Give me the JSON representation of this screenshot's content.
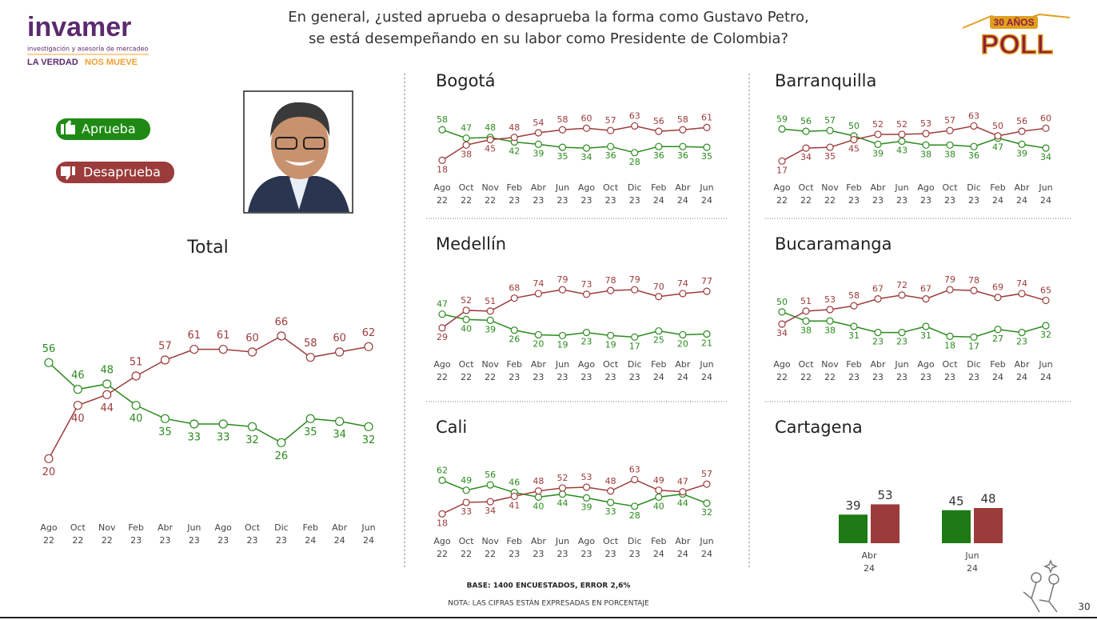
{
  "header": {
    "logo": "invamer",
    "logo_tagline": "investigación y asesoría de mercadeo",
    "slogan_1": "LA VERDAD",
    "slogan_2": "NOS MUEVE",
    "question_line_1": "En general, ¿usted aprueba o desaprueba la forma como Gustavo Petro,",
    "question_line_2": "se está desempeñando en su labor como Presidente de Colombia?",
    "badge_top": "30 AÑOS",
    "badge_bottom": "POLL"
  },
  "chart_data": [
    {
      "type": "line",
      "title": "Total",
      "categories": [
        "Ago 22",
        "Oct 22",
        "Nov 22",
        "Feb 23",
        "Abr 23",
        "Jun 23",
        "Ago 23",
        "Oct 23",
        "Dic 23",
        "Feb 24",
        "Abr 24",
        "Jun 24"
      ],
      "series": [
        {
          "name": "Aprueba",
          "color": "#2b8a1e",
          "values": [
            56,
            46,
            48,
            40,
            35,
            33,
            33,
            32,
            26,
            35,
            34,
            32
          ]
        },
        {
          "name": "Desaprueba",
          "color": "#9c3b3b",
          "values": [
            20,
            40,
            44,
            51,
            57,
            61,
            61,
            60,
            66,
            58,
            60,
            62
          ]
        }
      ],
      "ylim": [
        15,
        72
      ]
    },
    {
      "type": "line",
      "title": "Bogotá",
      "categories": [
        "Ago 22",
        "Oct 22",
        "Nov 22",
        "Feb 23",
        "Abr 23",
        "Jun 23",
        "Ago 23",
        "Oct 23",
        "Dic 23",
        "Feb 24",
        "Abr 24",
        "Jun 24"
      ],
      "series": [
        {
          "color": "#2b8a1e",
          "values": [
            58,
            47,
            48,
            42,
            39,
            35,
            34,
            36,
            28,
            36,
            36,
            35
          ]
        },
        {
          "color": "#9c3b3b",
          "values": [
            18,
            38,
            45,
            48,
            54,
            58,
            60,
            57,
            63,
            56,
            58,
            61
          ]
        }
      ],
      "ylim": [
        10,
        75
      ]
    },
    {
      "type": "line",
      "title": "Barranquilla",
      "categories": [
        "Ago 22",
        "Oct 22",
        "Nov 22",
        "Feb 23",
        "Abr 23",
        "Jun 23",
        "Ago 23",
        "Oct 23",
        "Dic 23",
        "Feb 24",
        "Abr 24",
        "Jun 24"
      ],
      "series": [
        {
          "color": "#2b8a1e",
          "values": [
            59,
            56,
            57,
            50,
            39,
            43,
            38,
            38,
            36,
            47,
            39,
            34
          ]
        },
        {
          "color": "#9c3b3b",
          "values": [
            17,
            34,
            35,
            45,
            52,
            52,
            53,
            57,
            63,
            50,
            56,
            60
          ]
        }
      ],
      "ylim": [
        10,
        75
      ]
    },
    {
      "type": "line",
      "title": "Medellín",
      "categories": [
        "Ago 22",
        "Oct 22",
        "Nov 22",
        "Feb 23",
        "Abr 23",
        "Jun 23",
        "Ago 23",
        "Oct 23",
        "Dic 23",
        "Feb 24",
        "Abr 24",
        "Jun 24"
      ],
      "series": [
        {
          "color": "#2b8a1e",
          "values": [
            47,
            40,
            39,
            26,
            20,
            19,
            23,
            19,
            17,
            25,
            20,
            21
          ]
        },
        {
          "color": "#9c3b3b",
          "values": [
            29,
            52,
            51,
            68,
            74,
            79,
            73,
            78,
            79,
            70,
            74,
            77
          ]
        }
      ],
      "ylim": [
        10,
        75
      ]
    },
    {
      "type": "line",
      "title": "Bucaramanga",
      "categories": [
        "Ago 22",
        "Oct 22",
        "Nov 22",
        "Feb 23",
        "Abr 23",
        "Jun 23",
        "Ago 23",
        "Oct 23",
        "Dic 23",
        "Feb 24",
        "Abr 24",
        "Jun 24"
      ],
      "series": [
        {
          "color": "#2b8a1e",
          "values": [
            50,
            38,
            38,
            31,
            23,
            23,
            31,
            18,
            17,
            27,
            23,
            32
          ]
        },
        {
          "color": "#9c3b3b",
          "values": [
            34,
            51,
            53,
            58,
            67,
            72,
            67,
            79,
            78,
            69,
            74,
            65
          ]
        }
      ],
      "ylim": [
        10,
        75
      ]
    },
    {
      "type": "line",
      "title": "Cali",
      "categories": [
        "Ago 22",
        "Oct 22",
        "Nov 22",
        "Feb 23",
        "Abr 23",
        "Jun 23",
        "Ago 23",
        "Oct 23",
        "Dic 23",
        "Feb 24",
        "Abr 24",
        "Jun 24"
      ],
      "series": [
        {
          "color": "#2b8a1e",
          "values": [
            62,
            49,
            56,
            46,
            40,
            44,
            39,
            33,
            28,
            40,
            44,
            32
          ]
        },
        {
          "color": "#9c3b3b",
          "values": [
            18,
            33,
            34,
            41,
            48,
            52,
            53,
            48,
            63,
            49,
            47,
            57
          ]
        }
      ],
      "ylim": [
        10,
        75
      ]
    },
    {
      "type": "bar",
      "title": "Cartagena",
      "categories": [
        "Abr 24",
        "Jun 24"
      ],
      "series": [
        {
          "color": "#1e7a14",
          "values": [
            39,
            45
          ]
        },
        {
          "color": "#9c3b3b",
          "values": [
            53,
            48
          ]
        }
      ],
      "ylim": [
        0,
        60
      ]
    }
  ],
  "footer": {
    "base": "BASE: 1400 ENCUESTADOS, ERROR 2,6%",
    "note": "NOTA: LAS CIFRAS ESTÁN EXPRESADAS EN PORCENTAJE",
    "page": "30"
  }
}
